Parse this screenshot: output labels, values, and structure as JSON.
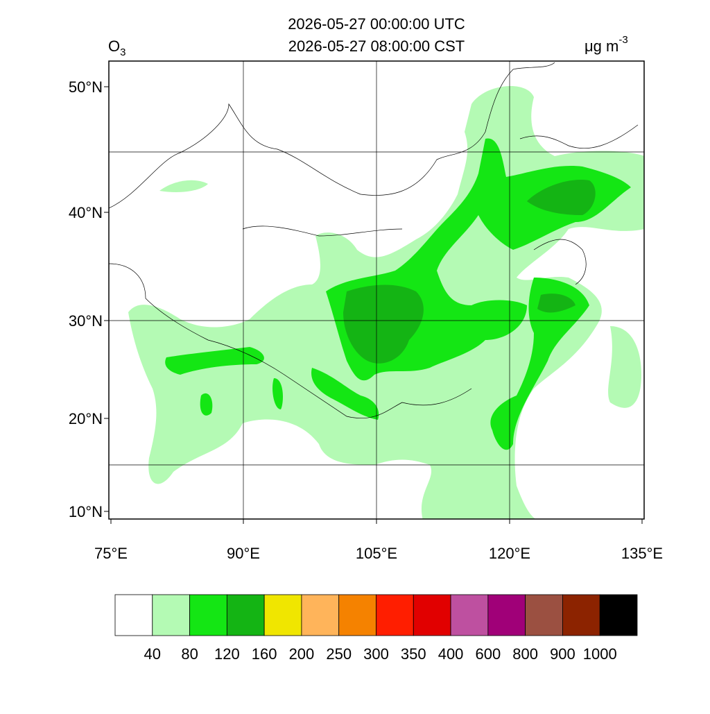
{
  "header": {
    "title_lines": [
      "2026-05-27 00:00:00 UTC",
      "2026-05-27 08:00:00 CST"
    ],
    "species": {
      "main": "O",
      "sub": "3"
    },
    "units": {
      "main": "μg m",
      "sup": "-3"
    }
  },
  "map": {
    "lat_labels": [
      "50°N",
      "40°N",
      "30°N",
      "20°N",
      "10°N"
    ],
    "lon_labels": [
      "75°E",
      "90°E",
      "105°E",
      "120°E",
      "135°E"
    ]
  },
  "colorbar": {
    "colors": [
      "#ffffff",
      "#b4fab4",
      "#14e614",
      "#14b414",
      "#f0e600",
      "#ffb45a",
      "#f58200",
      "#ff1e00",
      "#e10000",
      "#be50a0",
      "#a00078",
      "#9b5041",
      "#8c2300",
      "#000000"
    ],
    "levels": [
      40,
      80,
      120,
      160,
      200,
      250,
      300,
      350,
      400,
      600,
      800,
      900,
      1000
    ]
  }
}
